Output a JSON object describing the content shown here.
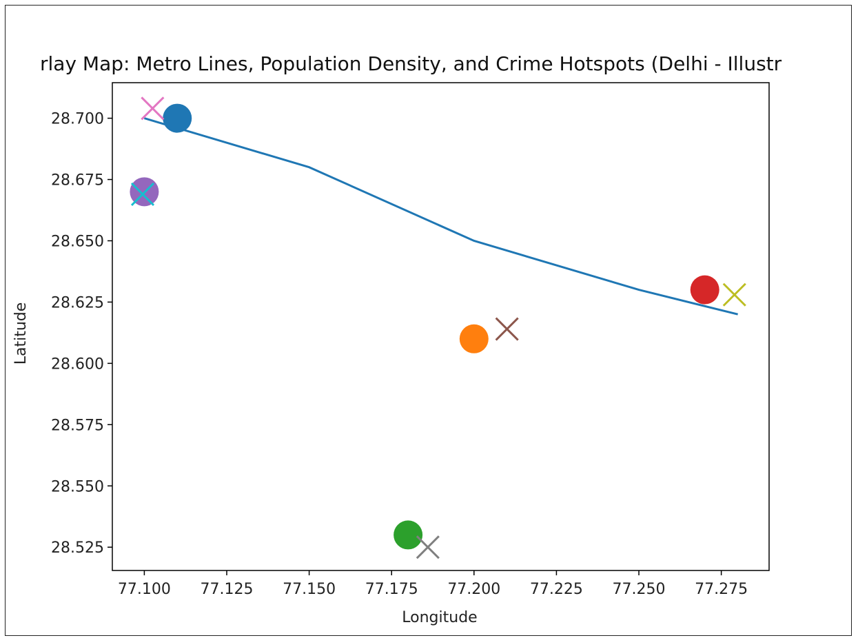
{
  "chart_data": {
    "type": "scatter",
    "title": "rlay Map: Metro Lines, Population Density, and Crime Hotspots (Delhi - Illustr",
    "xlabel": "Longitude",
    "ylabel": "Latitude",
    "xlim": [
      77.0903,
      77.2895
    ],
    "ylim": [
      28.5155,
      28.7145
    ],
    "x_ticks": [
      "77.100",
      "77.125",
      "77.150",
      "77.175",
      "77.200",
      "77.225",
      "77.250",
      "77.275"
    ],
    "y_ticks": [
      "28.525",
      "28.550",
      "28.575",
      "28.600",
      "28.625",
      "28.650",
      "28.675",
      "28.700"
    ],
    "grid": false,
    "metro_line": {
      "color": "#1f77b4",
      "x": [
        77.1,
        77.15,
        77.2,
        77.25,
        77.28
      ],
      "y": [
        28.7,
        28.68,
        28.65,
        28.63,
        28.62
      ]
    },
    "population_points": [
      {
        "x": 77.11,
        "y": 28.7,
        "color": "#1f77b4"
      },
      {
        "x": 77.2,
        "y": 28.61,
        "color": "#ff7f0e"
      },
      {
        "x": 77.18,
        "y": 28.53,
        "color": "#2ca02c"
      },
      {
        "x": 77.27,
        "y": 28.63,
        "color": "#d62728"
      },
      {
        "x": 77.1,
        "y": 28.67,
        "color": "#9467bd"
      }
    ],
    "crime_hotspots": [
      {
        "x": 77.21,
        "y": 28.614,
        "color": "#8c564b"
      },
      {
        "x": 77.1025,
        "y": 28.704,
        "color": "#e377c2"
      },
      {
        "x": 77.186,
        "y": 28.525,
        "color": "#7f7f7f"
      },
      {
        "x": 77.279,
        "y": 28.628,
        "color": "#bcbd22"
      },
      {
        "x": 77.0995,
        "y": 28.669,
        "color": "#17becf"
      }
    ]
  }
}
